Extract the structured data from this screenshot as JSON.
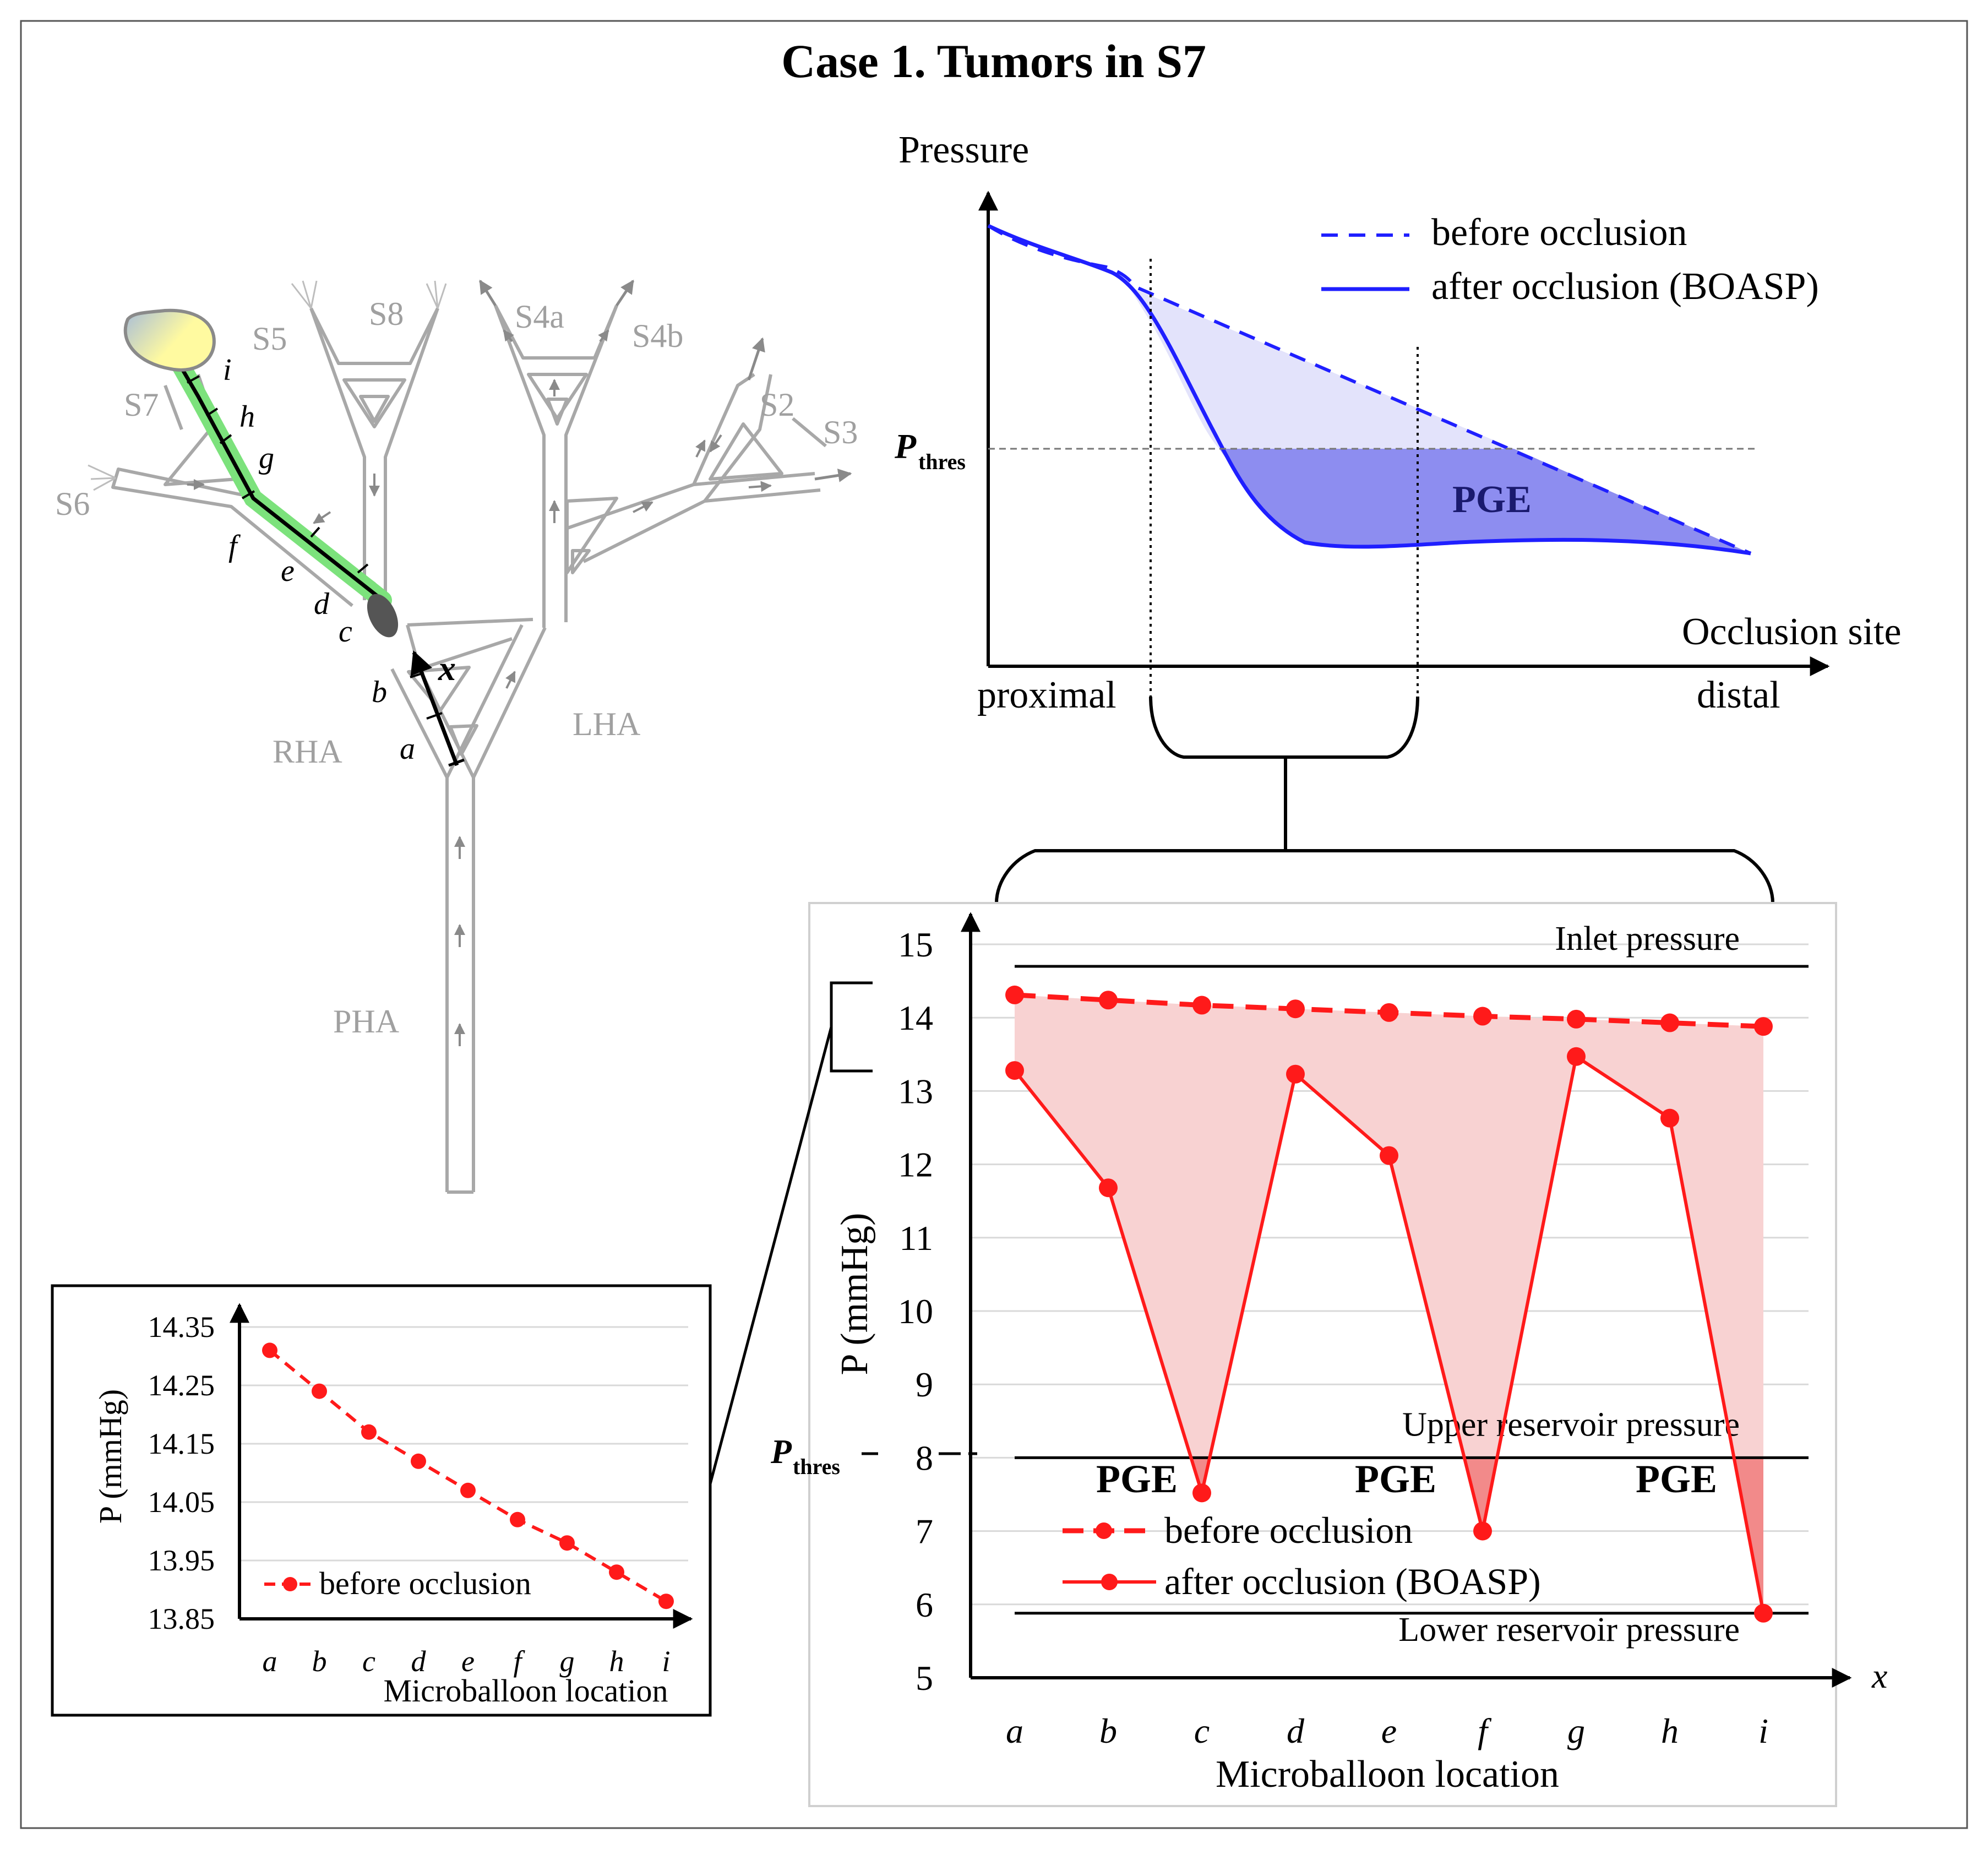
{
  "title": "Case 1. Tumors in S7",
  "tree": {
    "segments": [
      "S5",
      "S8",
      "S4a",
      "S4b",
      "S2",
      "S3",
      "S7",
      "S6"
    ],
    "vessels": [
      "RHA",
      "LHA",
      "PHA"
    ],
    "unknown": "x",
    "locations": [
      "a",
      "b",
      "c",
      "d",
      "e",
      "f",
      "g",
      "h",
      "i"
    ]
  },
  "concept": {
    "ylabel": "Pressure",
    "xlabel": "Occlusion site",
    "x_start": "proximal",
    "x_end": "distal",
    "thres_main": "P",
    "thres_sub": "thres",
    "region": "PGE",
    "legend": [
      "before occlusion",
      "after occlusion (BOASP)"
    ]
  },
  "colors": {
    "accent_red": "#ff1a1a",
    "fill_red": "#f8d2d2",
    "curve_blue": "#1f1fff",
    "fill_blue_light": "#e3e3fb",
    "fill_blue_dark": "#8d8df0",
    "path_green": "#7ce27c",
    "tumor_yellow": "#fffaa0"
  },
  "chart_data": [
    {
      "type": "line",
      "title": "",
      "xlabel": "Microballoon location",
      "ylabel": "P (mmHg)",
      "x_axis_symbol": "x",
      "categories": [
        "a",
        "b",
        "c",
        "d",
        "e",
        "f",
        "g",
        "h",
        "i"
      ],
      "ylim": [
        5,
        15
      ],
      "yticks": [
        "5",
        "6",
        "7",
        "8",
        "9",
        "10",
        "11",
        "12",
        "13",
        "14",
        "15"
      ],
      "series": [
        {
          "name": "before occlusion",
          "style": "dashed",
          "values": [
            14.31,
            14.24,
            14.17,
            14.12,
            14.07,
            14.02,
            13.98,
            13.93,
            13.88
          ]
        },
        {
          "name": "after occlusion (BOASP)",
          "style": "solid",
          "values": [
            13.28,
            11.68,
            7.52,
            13.23,
            12.12,
            7.0,
            13.47,
            12.63,
            5.88
          ]
        }
      ],
      "reference_lines": [
        {
          "label": "Inlet pressure",
          "value": 14.7
        },
        {
          "label": "Upper reservoir pressure",
          "value": 8.0
        },
        {
          "label": "Lower reservoir pressure",
          "value": 5.88
        }
      ],
      "threshold": {
        "label_main": "P",
        "label_sub": "thres",
        "value": 8.0
      },
      "annotations": [
        "PGE",
        "PGE",
        "PGE"
      ],
      "grid": true,
      "legend": "bottom-left"
    },
    {
      "type": "line",
      "title": "",
      "xlabel": "Microballoon location",
      "ylabel": "P (mmHg)",
      "categories": [
        "a",
        "b",
        "c",
        "d",
        "e",
        "f",
        "g",
        "h",
        "i"
      ],
      "ylim": [
        13.85,
        14.35
      ],
      "yticks": [
        "13.85",
        "13.95",
        "14.05",
        "14.15",
        "14.25",
        "14.35"
      ],
      "series": [
        {
          "name": "before occlusion",
          "style": "dashed",
          "values": [
            14.31,
            14.24,
            14.17,
            14.12,
            14.07,
            14.02,
            13.98,
            13.93,
            13.88
          ]
        }
      ],
      "grid": true,
      "legend": "bottom-left"
    }
  ]
}
